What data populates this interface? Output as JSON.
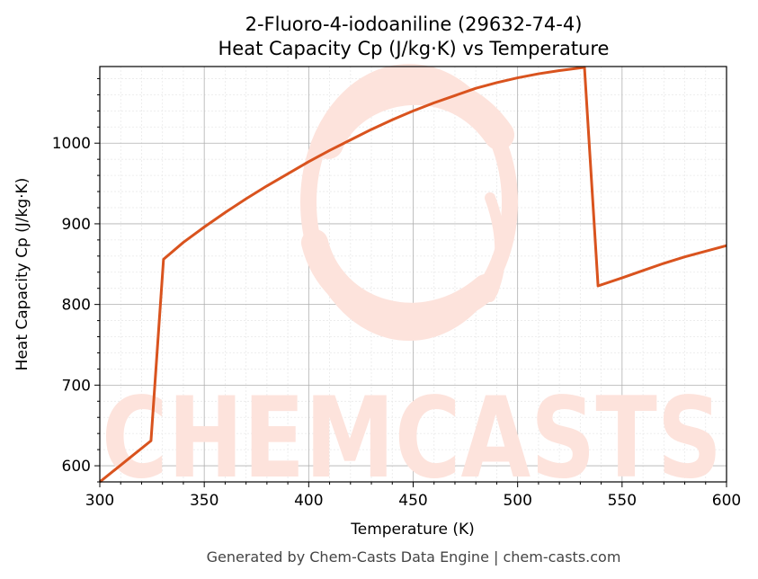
{
  "chart_data": {
    "type": "line",
    "title": "2-Fluoro-4-iodoaniline (29632-74-4)",
    "subtitle": "Heat Capacity Cp (J/kg·K) vs Temperature",
    "xlabel": "Temperature (K)",
    "ylabel": "Heat Capacity Cp (J/kg·K)",
    "xlim": [
      300,
      600
    ],
    "ylim": [
      580,
      1095
    ],
    "xticks": [
      300,
      350,
      400,
      450,
      500,
      550,
      600
    ],
    "yticks": [
      600,
      700,
      800,
      900,
      1000
    ],
    "grid": true,
    "line_color": "#d9531e",
    "series": [
      {
        "x": [
          300,
          324.5,
          330.5,
          340,
          350,
          360,
          370,
          380,
          390,
          400,
          410,
          420,
          430,
          440,
          450,
          460,
          470,
          480,
          490,
          500,
          510,
          520,
          532,
          538.5,
          550,
          560,
          570,
          580,
          590,
          600
        ],
        "values": [
          580,
          631,
          856,
          877,
          896,
          914,
          931,
          947,
          962,
          977,
          991,
          1004,
          1017,
          1029,
          1040,
          1050,
          1059,
          1068,
          1075,
          1081,
          1086,
          1090,
          1094,
          823,
          833,
          842,
          851,
          859,
          866,
          873
        ]
      }
    ]
  },
  "watermark": {
    "text": "CHEMCASTS",
    "color": "#fde3dc"
  },
  "footer": {
    "text": "Generated by Chem-Casts Data Engine | chem-casts.com"
  }
}
